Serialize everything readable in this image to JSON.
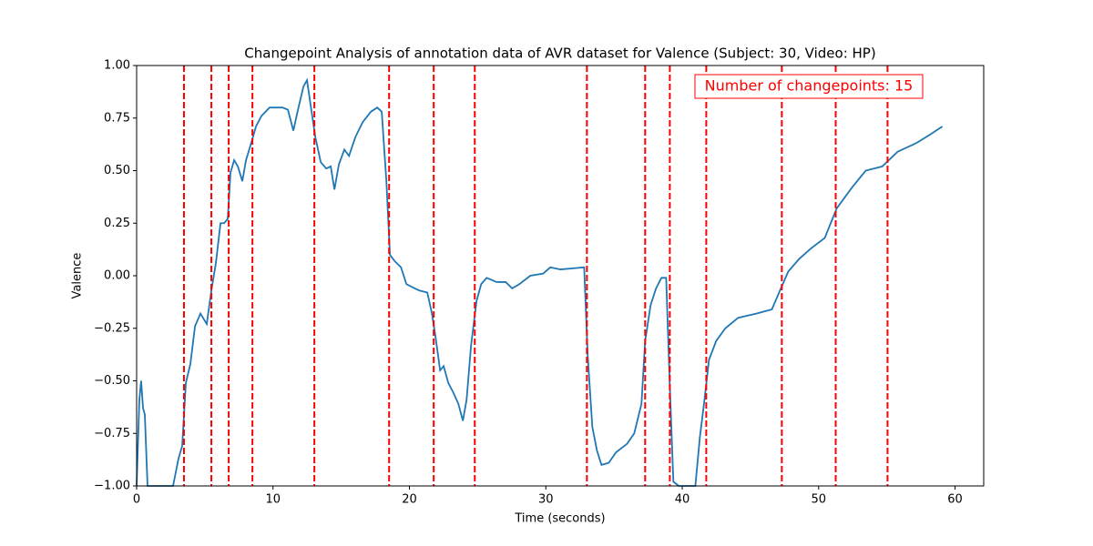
{
  "chart_data": {
    "type": "line",
    "title": "Changepoint Analysis of annotation data of AVR dataset for Valence (Subject: 30, Video: HP)",
    "x_label": "Time (seconds)",
    "y_label": "Valence",
    "annotation": "Number of changepoints: 15",
    "annotation_color": "#ff0000",
    "xlim": [
      0,
      62.1
    ],
    "ylim": [
      -1,
      1
    ],
    "xticks": [
      0,
      10,
      20,
      30,
      40,
      50,
      60
    ],
    "yticks": [
      {
        "value": -1,
        "label": "−1.00"
      },
      {
        "value": -0.75,
        "label": "−0.75"
      },
      {
        "value": -0.5,
        "label": "−0.50"
      },
      {
        "value": -0.25,
        "label": "−0.25"
      },
      {
        "value": 0,
        "label": "0.00"
      },
      {
        "value": 0.25,
        "label": "0.25"
      },
      {
        "value": 0.5,
        "label": "0.50"
      },
      {
        "value": 0.75,
        "label": "0.75"
      },
      {
        "value": 1,
        "label": "1.00"
      }
    ],
    "color": "#1f77b4",
    "x": [
      0,
      0.2,
      0.33,
      0.47,
      0.6,
      0.8,
      2.67,
      3.07,
      3.34,
      3.61,
      3.94,
      4.28,
      4.68,
      5.14,
      5.48,
      5.81,
      6.15,
      6.41,
      6.68,
      6.88,
      7.15,
      7.42,
      7.75,
      8.02,
      8.35,
      8.75,
      9.15,
      9.75,
      10.69,
      11.09,
      11.49,
      11.76,
      12.23,
      12.49,
      12.76,
      13.1,
      13.5,
      13.9,
      14.23,
      14.5,
      14.83,
      15.23,
      15.57,
      16.04,
      16.57,
      17.17,
      17.64,
      17.97,
      18.31,
      18.57,
      18.91,
      19.38,
      19.78,
      20.38,
      20.71,
      21.31,
      21.65,
      21.91,
      22.25,
      22.51,
      22.85,
      23.25,
      23.59,
      23.92,
      24.19,
      24.52,
      24.92,
      25.26,
      25.66,
      26.39,
      27.06,
      27.53,
      28.06,
      28.86,
      29.8,
      30.33,
      31.07,
      32.81,
      33.07,
      33.41,
      33.74,
      34.08,
      34.61,
      35.15,
      35.95,
      36.48,
      37.01,
      37.28,
      37.68,
      38.08,
      38.48,
      38.82,
      39.09,
      39.35,
      39.75,
      40.96,
      41.29,
      41.63,
      41.96,
      42.49,
      43.16,
      44.1,
      45.43,
      46.57,
      47.1,
      47.77,
      48.57,
      49.44,
      50.45,
      51.32,
      52.45,
      53.45,
      54.66,
      55.79,
      57.13,
      58.13,
      59.07
    ],
    "values": [
      -1,
      -0.59,
      -0.5,
      -0.63,
      -0.66,
      -1,
      -1,
      -0.87,
      -0.81,
      -0.51,
      -0.42,
      -0.24,
      -0.18,
      -0.23,
      -0.07,
      0.06,
      0.25,
      0.25,
      0.27,
      0.49,
      0.55,
      0.52,
      0.45,
      0.55,
      0.62,
      0.71,
      0.76,
      0.8,
      0.8,
      0.79,
      0.69,
      0.77,
      0.9,
      0.93,
      0.81,
      0.66,
      0.54,
      0.51,
      0.52,
      0.41,
      0.53,
      0.6,
      0.57,
      0.66,
      0.73,
      0.78,
      0.8,
      0.78,
      0.45,
      0.1,
      0.07,
      0.04,
      -0.04,
      -0.06,
      -0.07,
      -0.08,
      -0.18,
      -0.29,
      -0.45,
      -0.43,
      -0.51,
      -0.56,
      -0.61,
      -0.69,
      -0.59,
      -0.33,
      -0.12,
      -0.04,
      -0.01,
      -0.03,
      -0.03,
      -0.06,
      -0.04,
      0,
      0.01,
      0.04,
      0.03,
      0.04,
      -0.38,
      -0.72,
      -0.83,
      -0.9,
      -0.89,
      -0.84,
      -0.8,
      -0.75,
      -0.61,
      -0.31,
      -0.14,
      -0.06,
      -0.01,
      -0.01,
      -0.53,
      -0.98,
      -1,
      -1,
      -0.77,
      -0.59,
      -0.4,
      -0.31,
      -0.25,
      -0.2,
      -0.18,
      -0.16,
      -0.08,
      0.02,
      0.08,
      0.13,
      0.18,
      0.32,
      0.42,
      0.5,
      0.52,
      0.59,
      0.63,
      0.67,
      0.71
    ],
    "changepoints": [
      3.47,
      5.48,
      6.75,
      8.49,
      13.03,
      18.51,
      21.78,
      24.79,
      33.01,
      37.28,
      39.09,
      41.76,
      47.3,
      51.25,
      55.05
    ],
    "changepoint_color": "#ff0000"
  }
}
